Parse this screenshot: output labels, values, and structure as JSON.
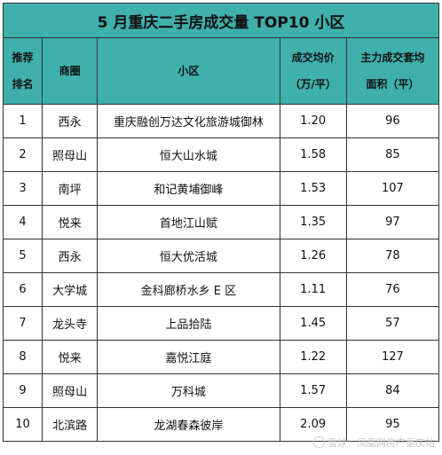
{
  "title": "5 月重庆二手房成交量 TOP10 小区",
  "headers": {
    "rank": [
      "推荐",
      "排名"
    ],
    "area": "商圈",
    "name": "小区",
    "price": [
      "成交均价",
      "（万/平）"
    ],
    "size": [
      "主力成交套均",
      "面积（平）"
    ]
  },
  "rows": [
    {
      "rank": "1",
      "area": "西永",
      "name": "重庆融创万达文化旅游城御林",
      "price": "1.20",
      "size": "96"
    },
    {
      "rank": "2",
      "area": "照母山",
      "name": "恒大山水城",
      "price": "1.58",
      "size": "85"
    },
    {
      "rank": "3",
      "area": "南坪",
      "name": "和记黄埔御峰",
      "price": "1.53",
      "size": "107"
    },
    {
      "rank": "4",
      "area": "悦来",
      "name": "首地江山赋",
      "price": "1.35",
      "size": "97"
    },
    {
      "rank": "5",
      "area": "西永",
      "name": "恒大优活城",
      "price": "1.26",
      "size": "78"
    },
    {
      "rank": "6",
      "area": "大学城",
      "name": "金科廊桥水乡 E 区",
      "price": "1.11",
      "size": "76"
    },
    {
      "rank": "7",
      "area": "龙头寺",
      "name": "上品拾陆",
      "price": "1.45",
      "size": "57"
    },
    {
      "rank": "8",
      "area": "悦来",
      "name": "嘉悦江庭",
      "price": "1.22",
      "size": "127"
    },
    {
      "rank": "9",
      "area": "照母山",
      "name": "万科城",
      "price": "1.57",
      "size": "84"
    },
    {
      "rank": "10",
      "area": "北滨路",
      "name": "龙湖春森彼岸",
      "price": "2.09",
      "size": "95"
    }
  ],
  "watermark": "雪球：凤凰网房产重庆站",
  "colors": {
    "header_bg": "#3fb0ac",
    "border": "#333333"
  }
}
